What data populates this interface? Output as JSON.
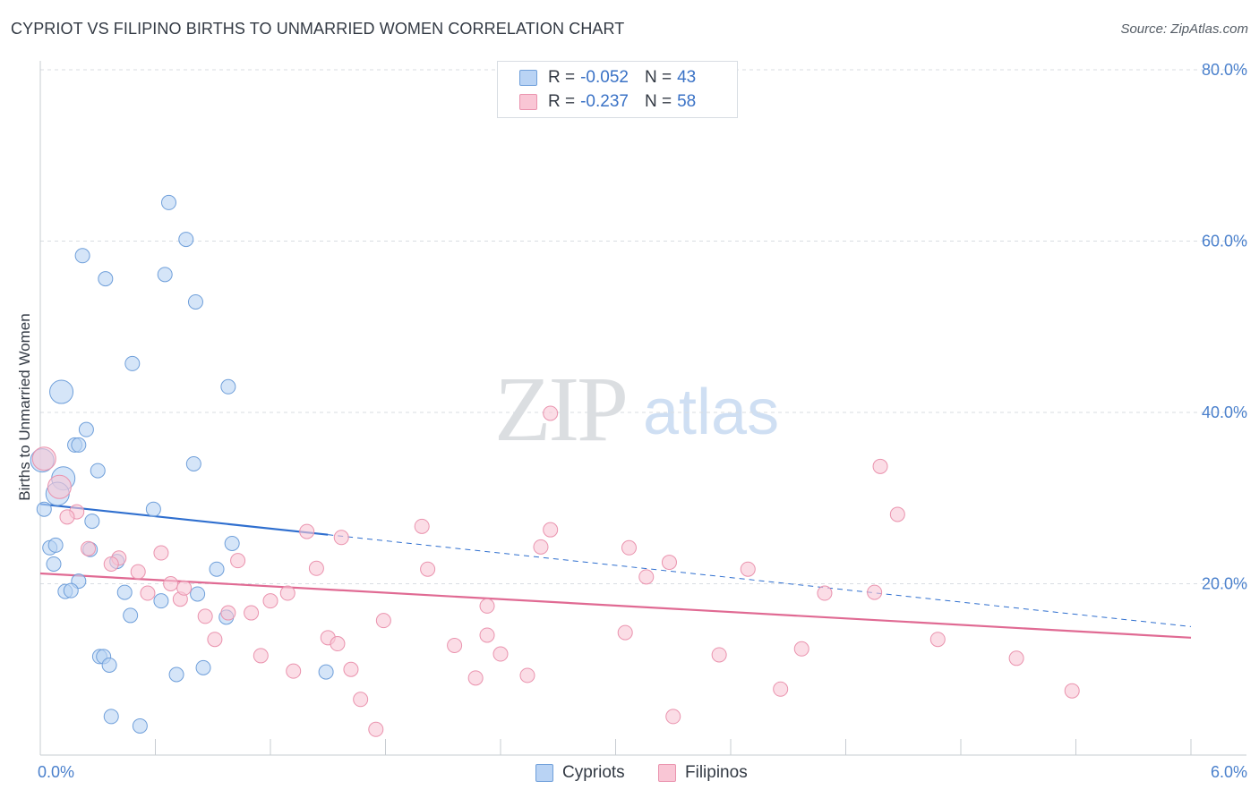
{
  "title": "CYPRIOT VS FILIPINO BIRTHS TO UNMARRIED WOMEN CORRELATION CHART",
  "source": "Source: ZipAtlas.com",
  "watermark": {
    "zip": "ZIP",
    "atlas": "atlas"
  },
  "legend": {
    "r_label": "R =",
    "n_label": "N =",
    "series": [
      {
        "name": "Cypriots",
        "r": "-0.052",
        "n": "43"
      },
      {
        "name": "Filipinos",
        "r": "-0.237",
        "n": "58"
      }
    ]
  },
  "colors": {
    "cypriots_fill": "#b9d3f4",
    "cypriots_stroke": "#6f9fda",
    "cypriots_line": "#2f6fcf",
    "filipinos_fill": "#f9c6d5",
    "filipinos_stroke": "#ea93ae",
    "filipinos_line": "#e06a93",
    "tick": "#4a80cc",
    "grid": "#d9dde2"
  },
  "chart_data": {
    "type": "scatter",
    "title": "CYPRIOT VS FILIPINO BIRTHS TO UNMARRIED WOMEN CORRELATION CHART",
    "xlabel": "",
    "ylabel": "Births to Unmarried Women",
    "xlim": [
      0,
      6
    ],
    "ylim": [
      0,
      80
    ],
    "x_tick_labels": [
      "0.0%",
      "6.0%"
    ],
    "y_ticks": [
      20,
      40,
      60,
      80
    ],
    "y_tick_labels": [
      "20.0%",
      "40.0%",
      "60.0%",
      "80.0%"
    ],
    "grid": true,
    "legend_position": "top-center",
    "series": [
      {
        "name": "Cypriots",
        "points": [
          [
            0.67,
            64.5
          ],
          [
            0.76,
            60.2
          ],
          [
            0.22,
            58.3
          ],
          [
            0.34,
            55.6
          ],
          [
            0.65,
            56.1
          ],
          [
            0.81,
            52.9
          ],
          [
            0.48,
            45.7
          ],
          [
            0.98,
            43.0
          ],
          [
            0.11,
            42.4
          ],
          [
            0.24,
            38.0
          ],
          [
            0.18,
            36.2
          ],
          [
            0.2,
            36.2
          ],
          [
            0.8,
            34.0
          ],
          [
            0.3,
            33.2
          ],
          [
            0.01,
            34.4
          ],
          [
            0.12,
            32.3
          ],
          [
            0.09,
            30.5
          ],
          [
            0.02,
            28.7
          ],
          [
            0.59,
            28.7
          ],
          [
            0.27,
            27.3
          ],
          [
            0.05,
            24.2
          ],
          [
            0.08,
            24.5
          ],
          [
            1.0,
            24.7
          ],
          [
            0.26,
            24.0
          ],
          [
            0.4,
            22.6
          ],
          [
            0.07,
            22.3
          ],
          [
            0.92,
            21.7
          ],
          [
            0.2,
            20.3
          ],
          [
            0.13,
            19.1
          ],
          [
            0.16,
            19.2
          ],
          [
            0.44,
            19.0
          ],
          [
            0.82,
            18.8
          ],
          [
            0.63,
            18.0
          ],
          [
            0.47,
            16.3
          ],
          [
            0.97,
            16.1
          ],
          [
            0.31,
            11.5
          ],
          [
            0.33,
            11.5
          ],
          [
            0.36,
            10.5
          ],
          [
            0.85,
            10.2
          ],
          [
            0.71,
            9.4
          ],
          [
            1.49,
            9.7
          ],
          [
            0.37,
            4.5
          ],
          [
            0.52,
            3.4
          ]
        ],
        "trend": {
          "x": [
            0.0,
            6.0
          ],
          "y": [
            29.3,
            15.0
          ],
          "solid_until_x": 1.5
        }
      },
      {
        "name": "Filipinos",
        "points": [
          [
            0.02,
            34.6
          ],
          [
            0.1,
            31.3
          ],
          [
            0.19,
            28.4
          ],
          [
            0.14,
            27.8
          ],
          [
            2.66,
            39.9
          ],
          [
            4.38,
            33.7
          ],
          [
            4.47,
            28.1
          ],
          [
            1.39,
            26.1
          ],
          [
            1.57,
            25.4
          ],
          [
            1.99,
            26.7
          ],
          [
            2.66,
            26.3
          ],
          [
            2.61,
            24.3
          ],
          [
            3.07,
            24.2
          ],
          [
            0.25,
            24.1
          ],
          [
            0.41,
            23.0
          ],
          [
            0.63,
            23.6
          ],
          [
            0.37,
            22.3
          ],
          [
            1.03,
            22.7
          ],
          [
            1.44,
            21.8
          ],
          [
            2.02,
            21.7
          ],
          [
            3.28,
            22.5
          ],
          [
            3.69,
            21.7
          ],
          [
            0.51,
            21.4
          ],
          [
            3.16,
            20.8
          ],
          [
            0.68,
            20.0
          ],
          [
            0.56,
            18.9
          ],
          [
            1.29,
            18.9
          ],
          [
            4.09,
            18.9
          ],
          [
            4.35,
            19.0
          ],
          [
            0.73,
            18.2
          ],
          [
            1.2,
            18.0
          ],
          [
            2.33,
            17.4
          ],
          [
            0.86,
            16.2
          ],
          [
            0.98,
            16.6
          ],
          [
            1.1,
            16.6
          ],
          [
            1.79,
            15.7
          ],
          [
            3.05,
            14.3
          ],
          [
            4.68,
            13.5
          ],
          [
            0.91,
            13.5
          ],
          [
            1.5,
            13.7
          ],
          [
            2.33,
            14.0
          ],
          [
            2.16,
            12.8
          ],
          [
            3.97,
            12.4
          ],
          [
            1.15,
            11.6
          ],
          [
            2.4,
            11.8
          ],
          [
            3.54,
            11.7
          ],
          [
            5.09,
            11.3
          ],
          [
            1.32,
            9.8
          ],
          [
            1.62,
            10.0
          ],
          [
            2.27,
            9.0
          ],
          [
            2.54,
            9.3
          ],
          [
            3.86,
            7.7
          ],
          [
            5.38,
            7.5
          ],
          [
            1.67,
            6.5
          ],
          [
            3.3,
            4.5
          ],
          [
            1.75,
            3.0
          ],
          [
            0.75,
            19.5
          ],
          [
            1.55,
            13.0
          ]
        ],
        "trend": {
          "x": [
            0.0,
            6.0
          ],
          "y": [
            21.2,
            13.7
          ]
        }
      }
    ]
  }
}
